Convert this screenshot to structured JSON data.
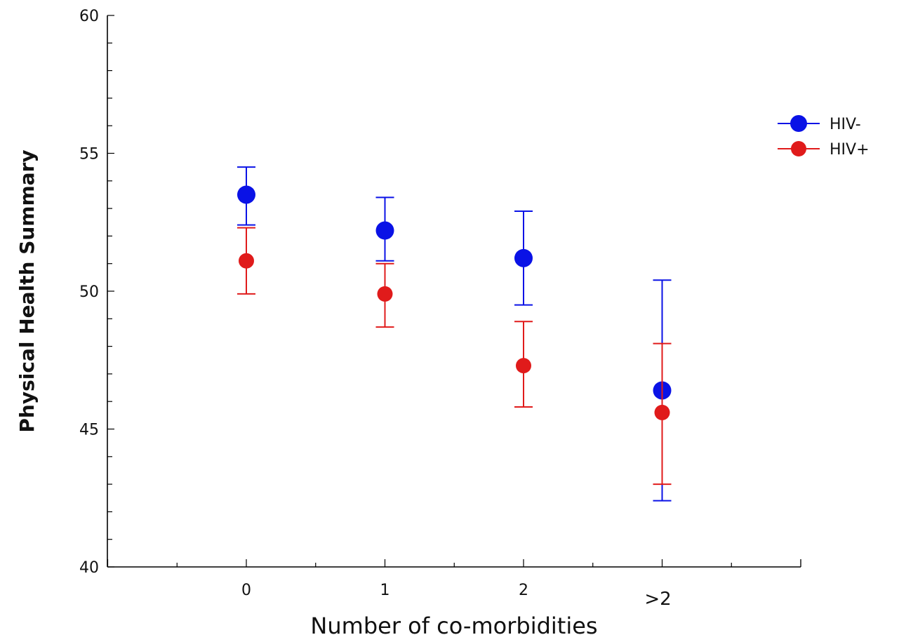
{
  "chart_data": {
    "type": "scatter",
    "title": "",
    "xlabel": "Number of co-morbidities",
    "ylabel": "Physical Health Summary",
    "categories": [
      "0",
      "1",
      "2",
      ">2"
    ],
    "ylim": [
      40,
      60
    ],
    "y_ticks": [
      "40",
      "45",
      "50",
      "55",
      "60"
    ],
    "grid": false,
    "legend_position": "top-right",
    "series": [
      {
        "name": "HIV-",
        "color": "#0a12e6",
        "values": [
          53.5,
          52.2,
          51.2,
          46.4
        ],
        "err_low": [
          52.4,
          51.1,
          49.5,
          42.4
        ],
        "err_high": [
          54.5,
          53.4,
          52.9,
          50.4
        ]
      },
      {
        "name": "HIV+",
        "color": "#e01b1b",
        "values": [
          51.1,
          49.9,
          47.3,
          45.6
        ],
        "err_low": [
          49.9,
          48.7,
          45.8,
          43.0
        ],
        "err_high": [
          52.3,
          51.0,
          48.9,
          48.1
        ]
      }
    ]
  }
}
